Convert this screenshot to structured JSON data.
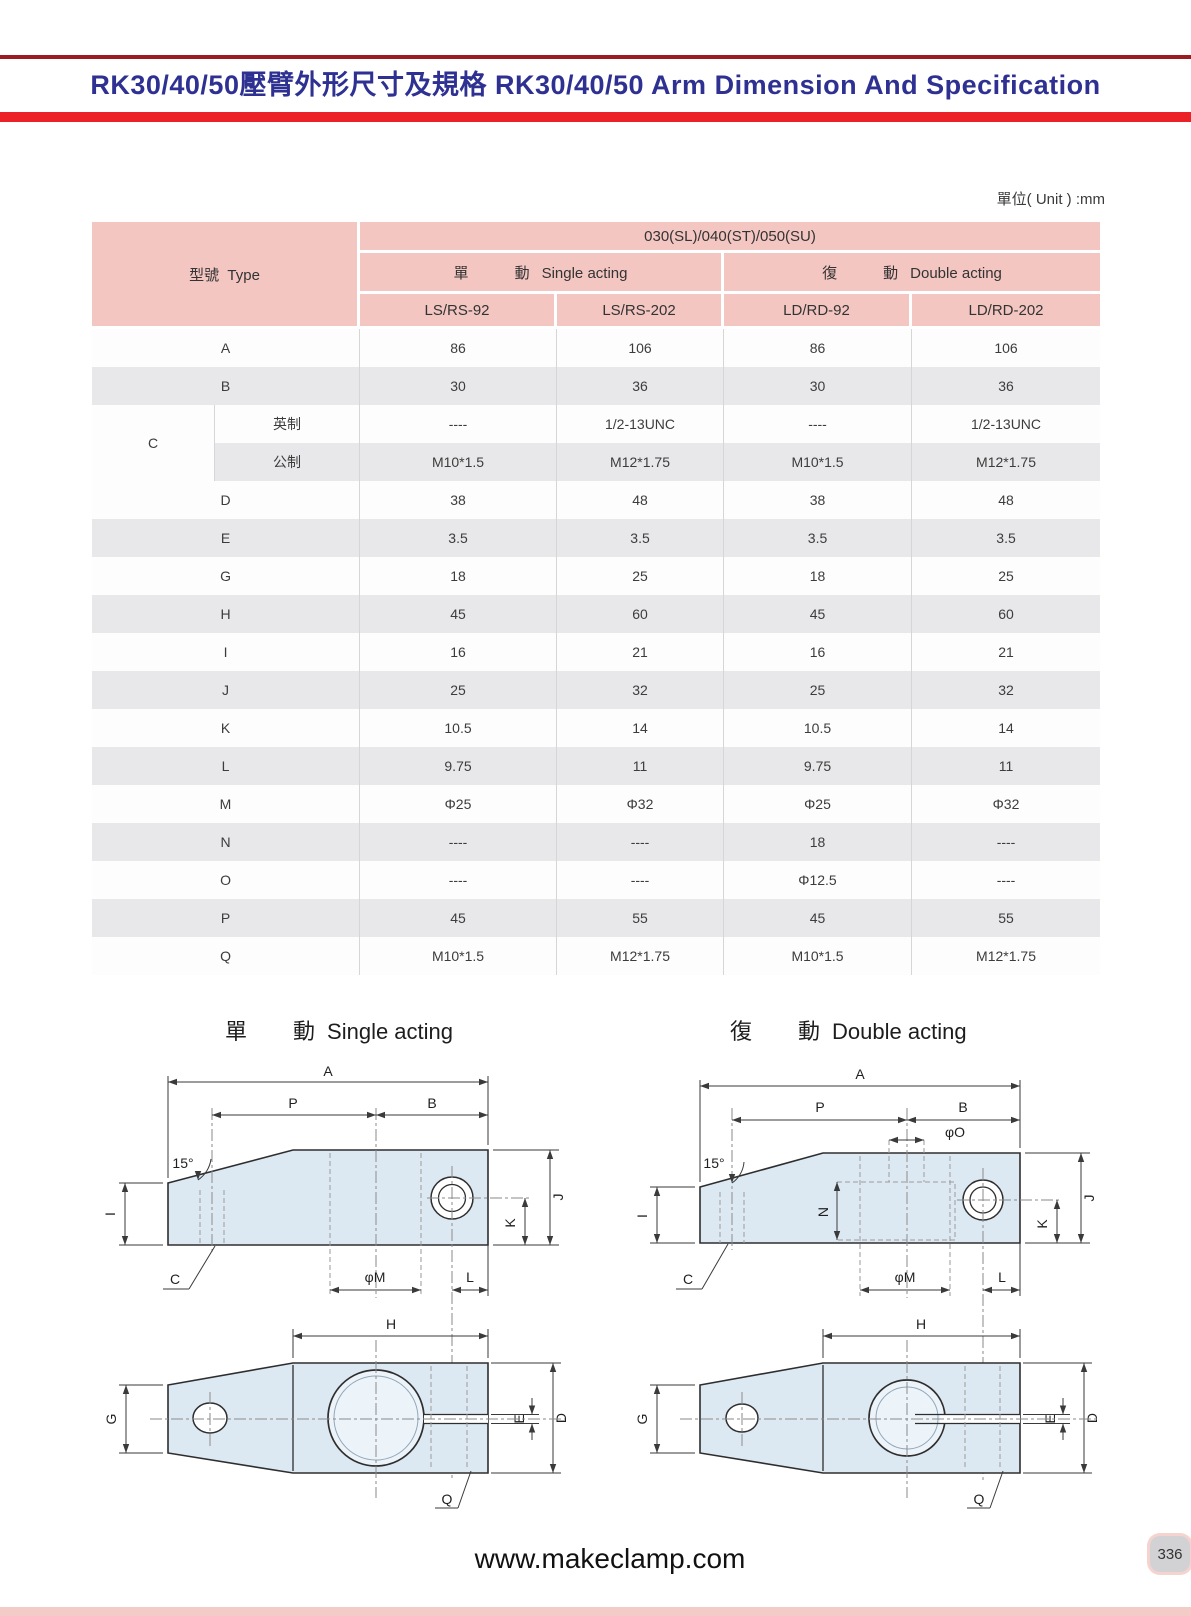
{
  "page": {
    "title": "RK30/40/50壓臂外形尺寸及規格 RK30/40/50 Arm Dimension And Specification",
    "unit_note": "單位( Unit ) :mm",
    "website": "www.makeclamp.com",
    "page_number": "336",
    "colors": {
      "title_blue": "#2e3192",
      "bar_red": "#ec2127",
      "bar_maroon": "#9c1b20",
      "header_pink": "#f3c6c2",
      "row_gray": "#e8e8ea",
      "part_fill": "#dde9f2"
    }
  },
  "table": {
    "type_header": "型號  Type",
    "group_header": "030(SL)/040(ST)/050(SU)",
    "single_acting": {
      "cn1": "單",
      "cn2": "動",
      "en": "Single acting"
    },
    "double_acting": {
      "cn1": "復",
      "cn2": "動",
      "en": "Double acting"
    },
    "col_headers": [
      "LS/RS-92",
      "LS/RS-202",
      "LD/RD-92",
      "LD/RD-202"
    ],
    "rows": [
      {
        "label": "A",
        "values": [
          "86",
          "106",
          "86",
          "106"
        ]
      },
      {
        "label": "B",
        "values": [
          "30",
          "36",
          "30",
          "36"
        ]
      },
      {
        "label": "C",
        "sub": "英制",
        "group_start": true,
        "values": [
          "----",
          "1/2-13UNC",
          "----",
          "1/2-13UNC"
        ]
      },
      {
        "sub": "公制",
        "values": [
          "M10*1.5",
          "M12*1.75",
          "M10*1.5",
          "M12*1.75"
        ]
      },
      {
        "label": "D",
        "values": [
          "38",
          "48",
          "38",
          "48"
        ]
      },
      {
        "label": "E",
        "values": [
          "3.5",
          "3.5",
          "3.5",
          "3.5"
        ]
      },
      {
        "label": "G",
        "values": [
          "18",
          "25",
          "18",
          "25"
        ]
      },
      {
        "label": "H",
        "values": [
          "45",
          "60",
          "45",
          "60"
        ]
      },
      {
        "label": "I",
        "values": [
          "16",
          "21",
          "16",
          "21"
        ]
      },
      {
        "label": "J",
        "values": [
          "25",
          "32",
          "25",
          "32"
        ]
      },
      {
        "label": "K",
        "values": [
          "10.5",
          "14",
          "10.5",
          "14"
        ]
      },
      {
        "label": "L",
        "values": [
          "9.75",
          "11",
          "9.75",
          "11"
        ]
      },
      {
        "label": "M",
        "values": [
          "Φ25",
          "Φ32",
          "Φ25",
          "Φ32"
        ]
      },
      {
        "label": "N",
        "values": [
          "----",
          "----",
          "18",
          "----"
        ]
      },
      {
        "label": "O",
        "values": [
          "----",
          "----",
          "Φ12.5",
          "----"
        ]
      },
      {
        "label": "P",
        "values": [
          "45",
          "55",
          "45",
          "55"
        ]
      },
      {
        "label": "Q",
        "values": [
          "M10*1.5",
          "M12*1.75",
          "M10*1.5",
          "M12*1.75"
        ]
      }
    ]
  },
  "diagrams": {
    "single": {
      "title_cn_1": "單",
      "title_cn_2": "動",
      "title_en": "Single acting",
      "labels": {
        "A": "A",
        "P": "P",
        "B": "B",
        "angle": "15°",
        "I": "I",
        "C": "C",
        "J": "J",
        "K": "K",
        "phiM": "φM",
        "L": "L",
        "H": "H",
        "G": "G",
        "E": "E",
        "D": "D",
        "Q": "Q"
      }
    },
    "double": {
      "title_cn_1": "復",
      "title_cn_2": "動",
      "title_en": "Double acting",
      "labels": {
        "A": "A",
        "P": "P",
        "B": "B",
        "phiO": "φO",
        "N": "N",
        "angle": "15°",
        "I": "I",
        "C": "C",
        "J": "J",
        "K": "K",
        "phiM": "φM",
        "L": "L",
        "H": "H",
        "G": "G",
        "E": "E",
        "D": "D",
        "Q": "Q"
      }
    }
  }
}
